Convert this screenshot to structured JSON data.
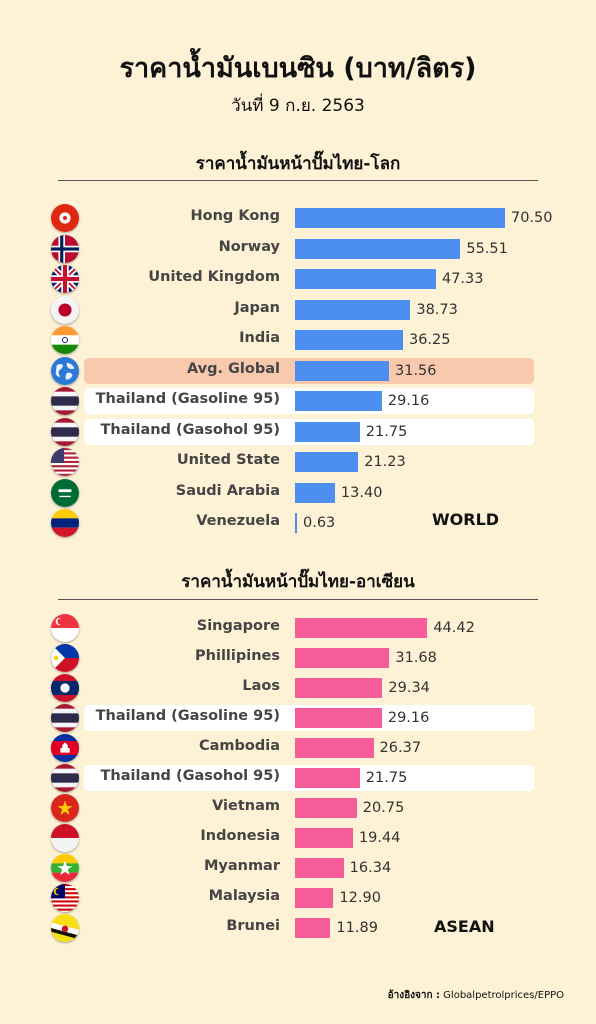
{
  "title": "ราคาน้ำมันเบนซิน (บาท/ลิตร)",
  "subtitle": "วันที่ 9 ก.ย. 2563",
  "source_label": "อ้างอิงจาก :",
  "source_text": "Globalpetrolprices/EPPO",
  "colors": {
    "world_bar": "#4d8ff0",
    "asean_bar": "#f75c9a",
    "background": "#fdf1d6",
    "avg_highlight": "#f9c9ae"
  },
  "chart_data": [
    {
      "type": "bar",
      "orientation": "horizontal",
      "title": "ราคาน้ำมันหน้าปั๊มไทย-โลก",
      "tag": "WORLD",
      "categories": [
        "Hong Kong",
        "Norway",
        "United Kingdom",
        "Japan",
        "India",
        "Avg. Global",
        "Thailand (Gasoline 95)",
        "Thailand (Gasohol 95)",
        "United State",
        "Saudi Arabia",
        "Venezuela"
      ],
      "values": [
        70.5,
        55.51,
        47.33,
        38.73,
        36.25,
        31.56,
        29.16,
        21.75,
        21.23,
        13.4,
        0.63
      ],
      "value_labels": [
        "70.50",
        "55.51",
        "47.33",
        "38.73",
        "36.25",
        "31.56",
        "29.16",
        "21.75",
        "21.23",
        "13.40",
        "0.63"
      ],
      "flags": [
        "hong-kong-flag",
        "norway-flag",
        "uk-flag",
        "japan-flag",
        "india-flag",
        "globe-icon",
        "thailand-flag",
        "thailand-flag",
        "usa-flag",
        "saudi-arabia-flag",
        "venezuela-flag"
      ],
      "highlight": [
        "",
        "",
        "",
        "",
        "",
        "avg",
        "thai",
        "thai",
        "",
        "",
        ""
      ]
    },
    {
      "type": "bar",
      "orientation": "horizontal",
      "title": "ราคาน้ำมันหน้าปั๊มไทย-อาเซียน",
      "tag": "ASEAN",
      "categories": [
        "Singapore",
        "Phillipines",
        "Laos",
        "Thailand (Gasoline 95)",
        "Cambodia",
        "Thailand (Gasohol 95)",
        "Vietnam",
        "Indonesia",
        "Myanmar",
        "Malaysia",
        "Brunei"
      ],
      "values": [
        44.42,
        31.68,
        29.34,
        29.16,
        26.37,
        21.75,
        20.75,
        19.44,
        16.34,
        12.9,
        11.89
      ],
      "value_labels": [
        "44.42",
        "31.68",
        "29.34",
        "29.16",
        "26.37",
        "21.75",
        "20.75",
        "19.44",
        "16.34",
        "12.90",
        "11.89"
      ],
      "flags": [
        "singapore-flag",
        "philippines-flag",
        "laos-flag",
        "thailand-flag",
        "cambodia-flag",
        "thailand-flag",
        "vietnam-flag",
        "indonesia-flag",
        "myanmar-flag",
        "malaysia-flag",
        "brunei-flag"
      ],
      "highlight": [
        "",
        "",
        "",
        "thai",
        "",
        "thai",
        "",
        "",
        "",
        "",
        ""
      ]
    }
  ]
}
